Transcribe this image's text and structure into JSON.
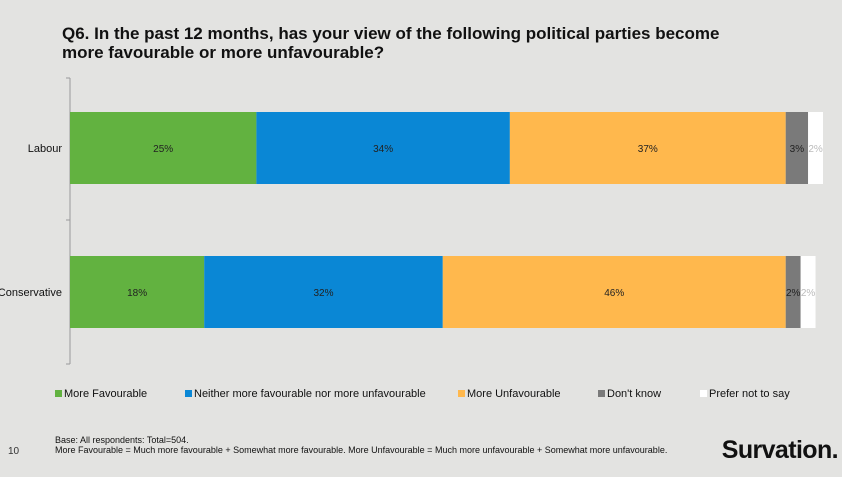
{
  "title": "Q6. In the past 12 months, has your view of the following political parties become more favourable or more unfavourable?",
  "chart_data": {
    "type": "bar",
    "orientation": "horizontal",
    "stacked": true,
    "categories": [
      "Labour",
      "Conservative"
    ],
    "series": [
      {
        "name": "More Favourable",
        "color": "#62b240",
        "values": [
          25,
          18
        ]
      },
      {
        "name": "Neither more favourable nor more unfavourable",
        "color": "#0a87d5",
        "values": [
          34,
          32
        ]
      },
      {
        "name": "More Unfavourable",
        "color": "#ffb84d",
        "values": [
          37,
          46
        ]
      },
      {
        "name": "Don't know",
        "color": "#7a7a7a",
        "values": [
          3,
          2
        ]
      },
      {
        "name": "Prefer not to say",
        "color": "#ffffff",
        "values": [
          2,
          2
        ]
      }
    ],
    "data_labels": [
      [
        "25%",
        "34%",
        "37%",
        "3%",
        "2%"
      ],
      [
        "18%",
        "32%",
        "46%",
        "2%",
        "2%"
      ]
    ],
    "label_colors": [
      "#222222",
      "#222222",
      "#222222",
      "#222222",
      "#bbbbbb"
    ],
    "legend_position": "bottom",
    "grid": false
  },
  "footer": {
    "page_number": "10",
    "base_line": "Base: All respondents: Total=504.",
    "definition_line": "More Favourable = Much more favourable + Somewhat more favourable. More Unfavourable = Much more unfavourable + Somewhat more unfavourable.",
    "logo_text": "Survation."
  }
}
